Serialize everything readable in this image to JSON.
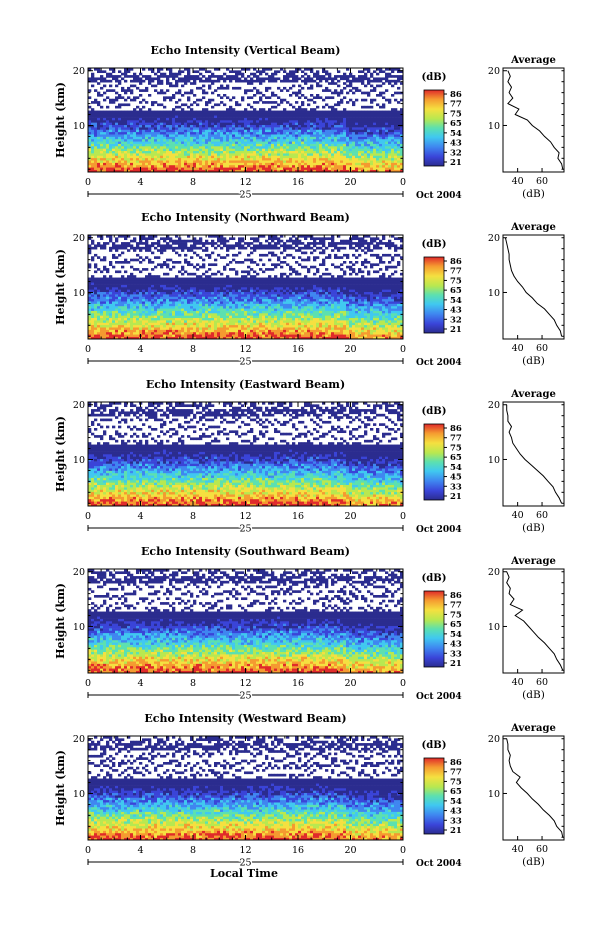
{
  "figure": {
    "xlabel": "Local Time",
    "date_label": "Oct 2004",
    "day_label": "25",
    "avg_title": "Average",
    "avg_xlabel": "(dB)",
    "colorbar_unit": "(dB)"
  },
  "chart_data": [
    {
      "type": "heatmap",
      "title": "Echo Intensity (Vertical Beam)",
      "ylabel": "Height (km)",
      "x_ticks": [
        "0",
        "4",
        "8",
        "12",
        "16",
        "20",
        "0"
      ],
      "y_ticks": [
        "10",
        "20"
      ],
      "xlim": [
        0,
        24
      ],
      "ylim": [
        1.5,
        20.5
      ],
      "colorbar_ticks": [
        "86",
        "77",
        "75",
        "65",
        "54",
        "43",
        "32",
        "21"
      ],
      "avg": {
        "title": "Average",
        "x_ticks": [
          "40",
          "60"
        ],
        "y_ticks": [
          "10",
          "20"
        ],
        "xlim": [
          28,
          78
        ],
        "profile": [
          [
            2,
            77
          ],
          [
            3,
            76
          ],
          [
            4,
            73
          ],
          [
            5,
            74
          ],
          [
            6,
            70
          ],
          [
            7,
            67
          ],
          [
            8,
            62
          ],
          [
            9,
            58
          ],
          [
            10,
            52
          ],
          [
            11,
            48
          ],
          [
            12,
            38
          ],
          [
            13,
            41
          ],
          [
            14,
            32
          ],
          [
            15,
            36
          ],
          [
            16,
            33
          ],
          [
            17,
            35
          ],
          [
            18,
            32
          ],
          [
            19,
            34
          ],
          [
            20,
            32
          ]
        ]
      }
    },
    {
      "type": "heatmap",
      "title": "Echo Intensity (Northward Beam)",
      "ylabel": "Height (km)",
      "x_ticks": [
        "0",
        "4",
        "8",
        "12",
        "16",
        "20",
        "0"
      ],
      "y_ticks": [
        "10",
        "20"
      ],
      "xlim": [
        0,
        24
      ],
      "ylim": [
        1.5,
        20.5
      ],
      "colorbar_ticks": [
        "86",
        "77",
        "75",
        "65",
        "54",
        "43",
        "32",
        "21"
      ],
      "avg": {
        "title": "Average",
        "x_ticks": [
          "40",
          "60"
        ],
        "y_ticks": [
          "10",
          "20"
        ],
        "xlim": [
          28,
          78
        ],
        "profile": [
          [
            2,
            76
          ],
          [
            3,
            75
          ],
          [
            4,
            72
          ],
          [
            5,
            70
          ],
          [
            6,
            66
          ],
          [
            7,
            62
          ],
          [
            8,
            56
          ],
          [
            9,
            52
          ],
          [
            10,
            47
          ],
          [
            11,
            44
          ],
          [
            12,
            40
          ],
          [
            13,
            37
          ],
          [
            14,
            35
          ],
          [
            15,
            34
          ],
          [
            16,
            33
          ],
          [
            17,
            33
          ],
          [
            18,
            32
          ],
          [
            19,
            31
          ],
          [
            20,
            30
          ]
        ]
      }
    },
    {
      "type": "heatmap",
      "title": "Echo Intensity (Eastward Beam)",
      "ylabel": "Height (km)",
      "x_ticks": [
        "0",
        "4",
        "8",
        "12",
        "16",
        "20",
        "0"
      ],
      "y_ticks": [
        "10",
        "20"
      ],
      "xlim": [
        0,
        24
      ],
      "ylim": [
        1.5,
        20.5
      ],
      "colorbar_ticks": [
        "86",
        "77",
        "75",
        "65",
        "54",
        "45",
        "33",
        "21"
      ],
      "avg": {
        "title": "Average",
        "x_ticks": [
          "40",
          "60"
        ],
        "y_ticks": [
          "10",
          "20"
        ],
        "xlim": [
          28,
          78
        ],
        "profile": [
          [
            2,
            76
          ],
          [
            3,
            74
          ],
          [
            4,
            71
          ],
          [
            5,
            69
          ],
          [
            6,
            65
          ],
          [
            7,
            61
          ],
          [
            8,
            56
          ],
          [
            9,
            51
          ],
          [
            10,
            46
          ],
          [
            11,
            42
          ],
          [
            12,
            39
          ],
          [
            13,
            36
          ],
          [
            14,
            35
          ],
          [
            15,
            33
          ],
          [
            16,
            35
          ],
          [
            17,
            32
          ],
          [
            18,
            32
          ],
          [
            19,
            31
          ],
          [
            20,
            31
          ]
        ]
      }
    },
    {
      "type": "heatmap",
      "title": "Echo Intensity (Southward Beam)",
      "ylabel": "Height (km)",
      "x_ticks": [
        "0",
        "4",
        "8",
        "12",
        "16",
        "20",
        "0"
      ],
      "y_ticks": [
        "10",
        "20"
      ],
      "xlim": [
        0,
        24
      ],
      "ylim": [
        1.5,
        20.5
      ],
      "colorbar_ticks": [
        "86",
        "77",
        "75",
        "65",
        "54",
        "43",
        "33",
        "21"
      ],
      "avg": {
        "title": "Average",
        "x_ticks": [
          "40",
          "60"
        ],
        "y_ticks": [
          "10",
          "20"
        ],
        "xlim": [
          28,
          78
        ],
        "profile": [
          [
            2,
            77
          ],
          [
            3,
            75
          ],
          [
            4,
            72
          ],
          [
            5,
            70
          ],
          [
            6,
            66
          ],
          [
            7,
            62
          ],
          [
            8,
            57
          ],
          [
            9,
            53
          ],
          [
            10,
            49
          ],
          [
            11,
            45
          ],
          [
            12,
            38
          ],
          [
            13,
            44
          ],
          [
            14,
            34
          ],
          [
            15,
            37
          ],
          [
            16,
            33
          ],
          [
            17,
            34
          ],
          [
            18,
            31
          ],
          [
            19,
            33
          ],
          [
            20,
            31
          ]
        ]
      }
    },
    {
      "type": "heatmap",
      "title": "Echo Intensity (Westward Beam)",
      "ylabel": "Height (km)",
      "x_ticks": [
        "0",
        "4",
        "8",
        "12",
        "16",
        "20",
        "0"
      ],
      "y_ticks": [
        "10",
        "20"
      ],
      "xlim": [
        0,
        24
      ],
      "ylim": [
        1.5,
        20.5
      ],
      "colorbar_ticks": [
        "86",
        "77",
        "75",
        "65",
        "54",
        "43",
        "33",
        "21"
      ],
      "avg": {
        "title": "Average",
        "x_ticks": [
          "40",
          "60"
        ],
        "y_ticks": [
          "10",
          "20"
        ],
        "xlim": [
          28,
          78
        ],
        "profile": [
          [
            2,
            77
          ],
          [
            3,
            76
          ],
          [
            4,
            72
          ],
          [
            5,
            70
          ],
          [
            6,
            66
          ],
          [
            7,
            61
          ],
          [
            8,
            57
          ],
          [
            9,
            52
          ],
          [
            10,
            48
          ],
          [
            11,
            43
          ],
          [
            12,
            39
          ],
          [
            13,
            42
          ],
          [
            14,
            36
          ],
          [
            15,
            34
          ],
          [
            16,
            33
          ],
          [
            17,
            34
          ],
          [
            18,
            32
          ],
          [
            19,
            32
          ],
          [
            20,
            31
          ]
        ]
      }
    }
  ]
}
